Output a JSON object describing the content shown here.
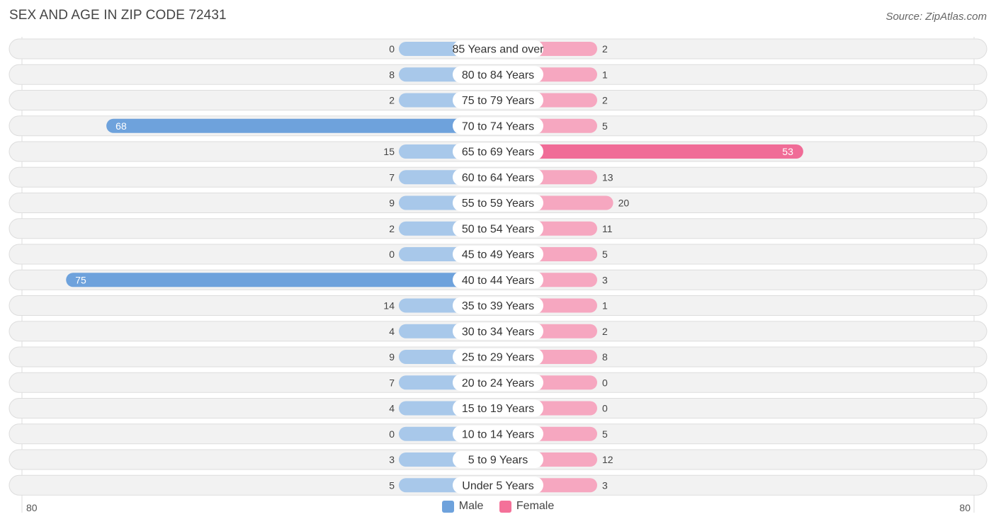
{
  "title": "SEX AND AGE IN ZIP CODE 72431",
  "source": "Source: ZipAtlas.com",
  "axis": {
    "left_label": "80",
    "right_label": "80"
  },
  "legend": [
    {
      "label": "Male",
      "color": "#6ea2dc"
    },
    {
      "label": "Female",
      "color": "#f47199"
    }
  ],
  "chart_data": {
    "type": "bar",
    "orientation": "diverging-horizontal",
    "title": "SEX AND AGE IN ZIP CODE 72431",
    "categories": [
      "85 Years and over",
      "80 to 84 Years",
      "75 to 79 Years",
      "70 to 74 Years",
      "65 to 69 Years",
      "60 to 64 Years",
      "55 to 59 Years",
      "50 to 54 Years",
      "45 to 49 Years",
      "40 to 44 Years",
      "35 to 39 Years",
      "30 to 34 Years",
      "25 to 29 Years",
      "20 to 24 Years",
      "15 to 19 Years",
      "10 to 14 Years",
      "5 to 9 Years",
      "Under 5 Years"
    ],
    "series": [
      {
        "name": "Male",
        "values": [
          0,
          8,
          2,
          68,
          15,
          7,
          9,
          2,
          0,
          75,
          14,
          4,
          9,
          7,
          4,
          0,
          3,
          5
        ]
      },
      {
        "name": "Female",
        "values": [
          2,
          1,
          2,
          5,
          53,
          13,
          20,
          11,
          5,
          3,
          1,
          2,
          8,
          0,
          0,
          5,
          12,
          3
        ]
      }
    ],
    "xlim": [
      -80,
      80
    ],
    "legend_position": "bottom",
    "colors": {
      "male_light": "#a8c8ea",
      "male_dark": "#6ea2dc",
      "female_light": "#f6a7c0",
      "female_dark": "#f06c97"
    }
  }
}
